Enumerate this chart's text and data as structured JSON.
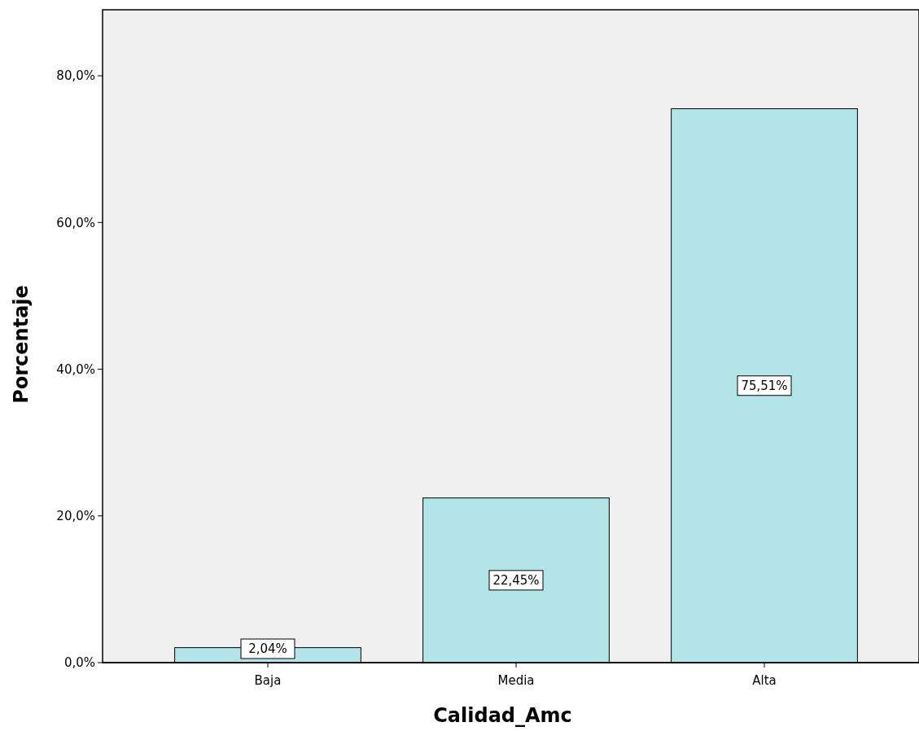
{
  "chart_data": {
    "type": "bar",
    "xlabel": "Calidad_Amc",
    "ylabel": "Porcentaje",
    "categories": [
      "Baja",
      "Media",
      "Alta"
    ],
    "values": [
      2.04,
      22.45,
      75.51
    ],
    "value_labels": [
      "2,04%",
      "22,45%",
      "75,51%"
    ],
    "color": "#b3e5e8",
    "ylim": [
      0,
      89
    ],
    "yticks": [
      {
        "value": 0,
        "label": "0,0%"
      },
      {
        "value": 20,
        "label": "20,0%"
      },
      {
        "value": 40,
        "label": "40,0%"
      },
      {
        "value": 60,
        "label": "60,0%"
      },
      {
        "value": 80,
        "label": "80,0%"
      }
    ]
  }
}
